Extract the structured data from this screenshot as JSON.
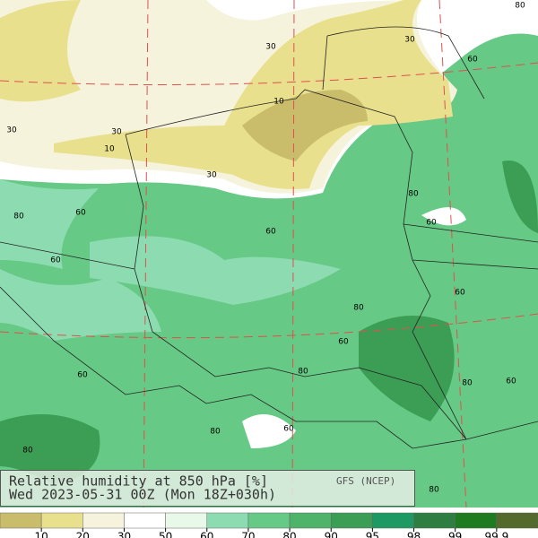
{
  "header": {
    "title": "Relative humidity at 850 hPa [%]",
    "source": "GFS (NCEP)",
    "time": "Wed 2023-05-31 00Z (Mon 18Z+030h)"
  },
  "contour_labels": [
    "30",
    "30",
    "60",
    "10",
    "30",
    "10",
    "30",
    "30",
    "80",
    "60",
    "60",
    "60",
    "80",
    "60",
    "60",
    "80",
    "60",
    "80",
    "60",
    "80",
    "60",
    "80",
    "60",
    "80",
    "80",
    "80"
  ],
  "legend": {
    "ticks": [
      10,
      20,
      30,
      50,
      60,
      70,
      80,
      90,
      95,
      98,
      99,
      99.9
    ],
    "colors": [
      "#c9bd6c",
      "#e9e08d",
      "#f6f3dc",
      "#ffffff",
      "#e8f9e9",
      "#8ddcb1",
      "#66c985",
      "#4fb46a",
      "#3c9e55",
      "#1d9a63",
      "#2f7e41",
      "#1f7b20",
      "#54692c"
    ]
  }
}
